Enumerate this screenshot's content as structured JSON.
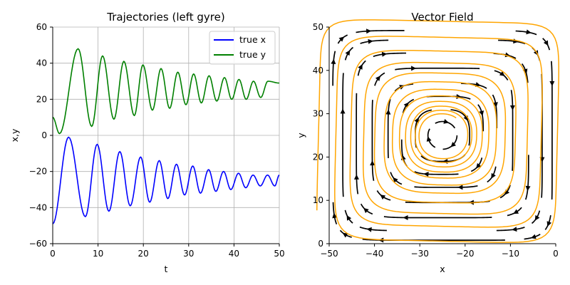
{
  "chart_data": [
    {
      "type": "line",
      "title": "Trajectories (left gyre)",
      "xlabel": "t",
      "ylabel": "x,y",
      "xlim": [
        0,
        50
      ],
      "ylim": [
        -60,
        60
      ],
      "grid": true,
      "legend": "top-right",
      "xticks": [
        "0",
        "10",
        "20",
        "30",
        "40",
        "50"
      ],
      "yticks": [
        "−60",
        "−40",
        "−20",
        "0",
        "20",
        "40",
        "60"
      ],
      "series": [
        {
          "name": "true x",
          "color": "#0000ff",
          "model": {
            "center": -25,
            "amplitude": 24.5,
            "decay": 0.025,
            "period_start": 6.2,
            "period_end": 3.3,
            "phase": -1.5
          },
          "peaks": [
            [
              3.5,
              -1
            ],
            [
              9.8,
              -5
            ],
            [
              14.8,
              -9
            ],
            [
              19.4,
              -12
            ],
            [
              23.5,
              -14
            ],
            [
              27.3,
              -16
            ],
            [
              30.9,
              -17
            ],
            [
              34.4,
              -19
            ],
            [
              37.7,
              -20
            ],
            [
              41.0,
              -21
            ],
            [
              44.2,
              -22
            ],
            [
              47.4,
              -22
            ]
          ],
          "troughs": [
            [
              7.2,
              -45
            ],
            [
              12.4,
              -42
            ],
            [
              17.1,
              -39
            ],
            [
              21.4,
              -37
            ],
            [
              25.4,
              -35
            ],
            [
              29.1,
              -33
            ],
            [
              32.6,
              -32
            ],
            [
              36.0,
              -31
            ],
            [
              39.3,
              -30
            ],
            [
              42.6,
              -29
            ],
            [
              45.8,
              -28
            ],
            [
              49.0,
              -28
            ]
          ],
          "start": -49,
          "end": -22
        },
        {
          "name": "true y",
          "color": "#008000",
          "model": {
            "center": 25,
            "amplitude": 23,
            "decay": 0.025,
            "period_start": 6.2,
            "period_end": 3.3,
            "phase": 0
          },
          "peaks": [
            [
              5.6,
              48
            ],
            [
              11.0,
              44
            ],
            [
              15.7,
              41
            ],
            [
              19.9,
              39
            ],
            [
              23.9,
              37
            ],
            [
              27.6,
              35
            ],
            [
              31.1,
              34
            ],
            [
              34.5,
              33
            ],
            [
              37.9,
              32
            ],
            [
              41.1,
              31
            ],
            [
              44.3,
              30
            ],
            [
              47.5,
              30
            ]
          ],
          "troughs": [
            [
              1.5,
              1
            ],
            [
              8.6,
              5
            ],
            [
              13.5,
              9
            ],
            [
              18.0,
              11
            ],
            [
              22.0,
              14
            ],
            [
              25.8,
              15
            ],
            [
              29.4,
              17
            ],
            [
              32.8,
              18
            ],
            [
              36.2,
              19
            ],
            [
              39.5,
              20
            ],
            [
              42.7,
              20
            ],
            [
              45.9,
              21
            ]
          ],
          "start": 10,
          "end": 29
        }
      ]
    },
    {
      "type": "streamplot",
      "title": "Vector Field",
      "xlabel": "x",
      "ylabel": "y",
      "xlim": [
        -50,
        0
      ],
      "ylim": [
        0,
        50
      ],
      "xticks": [
        "−50",
        "−40",
        "−30",
        "−20",
        "−10",
        "0"
      ],
      "yticks": [
        "0",
        "10",
        "20",
        "30",
        "40",
        "50"
      ],
      "gyre_center": [
        -25,
        25
      ],
      "stream_color": "#000000",
      "trajectory_color": "#ffa500",
      "trajectory": {
        "start": [
          -49,
          10
        ],
        "end": [
          -22,
          29
        ],
        "rotation": "clockwise"
      }
    }
  ]
}
